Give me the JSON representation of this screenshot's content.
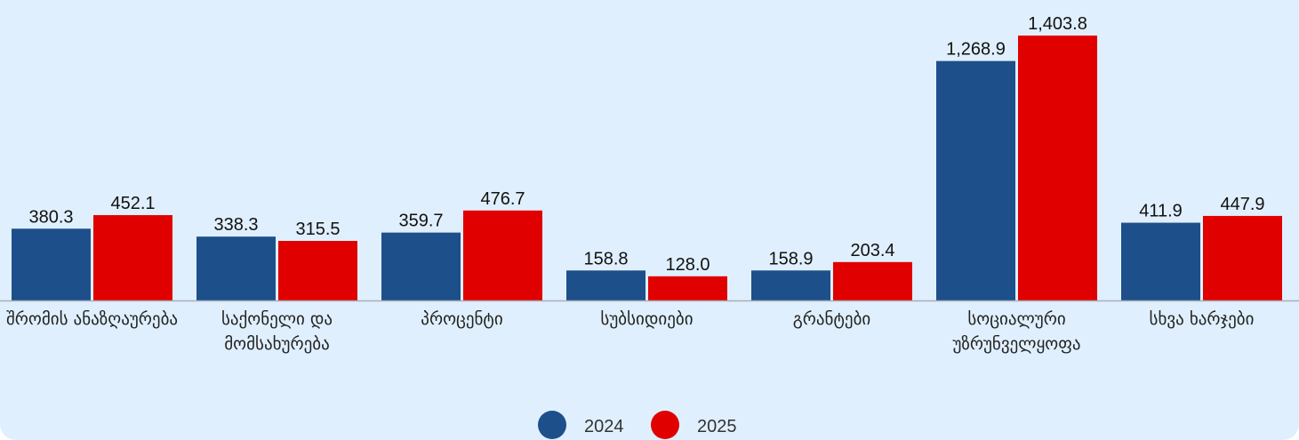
{
  "chart_data": {
    "type": "bar",
    "categories": [
      "შრომის ანაზღაურება",
      "საქონელი და მომსახურება",
      "პროცენტი",
      "სუბსიდიები",
      "გრანტები",
      "სოციალური უზრუნველყოფა",
      "სხვა ხარჯები"
    ],
    "series": [
      {
        "name": "2024",
        "color": "#1d4f8b",
        "values": [
          380.3,
          338.3,
          359.7,
          158.8,
          158.9,
          1268.9,
          411.9
        ],
        "value_labels": [
          "380.3",
          "338.3",
          "359.7",
          "158.8",
          "158.9",
          "1,268.9",
          "411.9"
        ]
      },
      {
        "name": "2025",
        "color": "#e00000",
        "values": [
          452.1,
          315.5,
          476.7,
          128.0,
          203.4,
          1403.8,
          447.9
        ],
        "value_labels": [
          "452.1",
          "315.5",
          "476.7",
          "128.0",
          "203.4",
          "1,403.8",
          "447.9"
        ]
      }
    ],
    "legend": "bottom"
  }
}
